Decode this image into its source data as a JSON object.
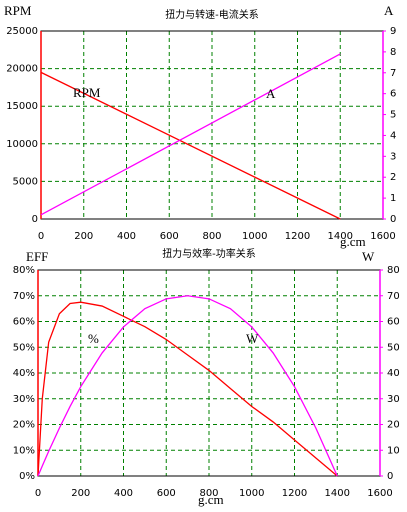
{
  "chart_data": [
    {
      "type": "line",
      "title": "扭力与转速-电流关系",
      "x_label": "g.cm",
      "y_label": "RPM",
      "y2_label": "A",
      "x": [
        0,
        1400
      ],
      "series": [
        {
          "name": "RPM",
          "color": "#ff0000",
          "values": [
            19500,
            0
          ]
        },
        {
          "name": "A",
          "color": "#ff00ff",
          "axis": "y2",
          "values": [
            0.2,
            7.9
          ]
        }
      ],
      "annotations": [
        "RPM",
        "A"
      ],
      "xlim": [
        0,
        1600
      ],
      "xticks": [
        0,
        200,
        400,
        600,
        800,
        1000,
        1200,
        1400,
        1600
      ],
      "ylim": [
        0,
        25000
      ],
      "yticks": [
        0,
        5000,
        10000,
        15000,
        20000,
        25000
      ],
      "y2lim": [
        0,
        9
      ],
      "y2ticks": [
        0,
        1,
        2,
        3,
        4,
        5,
        6,
        7,
        8,
        9
      ],
      "grid": true,
      "grid_color": "#008000"
    },
    {
      "type": "line",
      "title": "扭力与效率-功率关系",
      "x_label": "g.cm",
      "y_label": "EFF",
      "y2_label": "W",
      "x": [
        0,
        20,
        50,
        100,
        150,
        200,
        300,
        400,
        500,
        600,
        700,
        800,
        900,
        1000,
        1100,
        1200,
        1300,
        1400
      ],
      "series": [
        {
          "name": "%",
          "color": "#ff0000",
          "values": [
            0,
            30,
            52,
            63,
            67,
            67.5,
            66,
            62,
            58,
            53,
            47,
            41,
            34,
            27,
            21,
            14,
            7,
            0
          ]
        },
        {
          "name": "W",
          "color": "#ff00ff",
          "axis": "y2",
          "values": [
            0,
            3.9,
            9.6,
            18.6,
            27,
            34.7,
            47.8,
            57.9,
            65,
            68.8,
            70,
            68.8,
            65,
            57.9,
            47.8,
            34.7,
            18.6,
            0
          ]
        }
      ],
      "annotations": [
        "%",
        "W"
      ],
      "xlim": [
        0,
        1600
      ],
      "xticks": [
        0,
        200,
        400,
        600,
        800,
        1000,
        1200,
        1400,
        1600
      ],
      "ylim": [
        0,
        80
      ],
      "yticks": [
        {
          "value": 0,
          "label": "0%"
        },
        {
          "value": 10,
          "label": "10%"
        },
        {
          "value": 20,
          "label": "20%"
        },
        {
          "value": 30,
          "label": "30%"
        },
        {
          "value": 40,
          "label": "40%"
        },
        {
          "value": 50,
          "label": "50%"
        },
        {
          "value": 60,
          "label": "60%"
        },
        {
          "value": 70,
          "label": "70%"
        },
        {
          "value": 80,
          "label": "80%"
        }
      ],
      "y2lim": [
        0,
        80
      ],
      "y2ticks": [
        0,
        10,
        20,
        30,
        40,
        50,
        60,
        70,
        80
      ],
      "grid": true,
      "grid_color": "#008000"
    }
  ]
}
